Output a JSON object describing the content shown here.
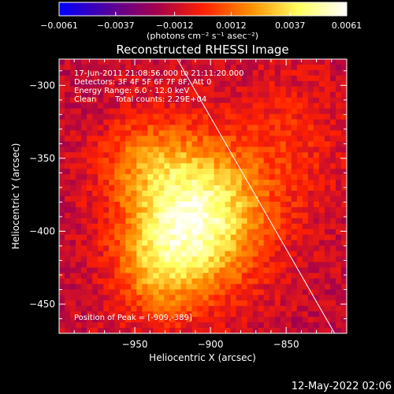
{
  "chart_data": {
    "type": "heatmap",
    "title": "Reconstructed RHESSI Image",
    "xlabel": "Heliocentric X (arcsec)",
    "ylabel": "Heliocentric Y (arcsec)",
    "xlim": [
      -1000,
      -810
    ],
    "ylim": [
      -470,
      -282
    ],
    "x_ticks": [
      -950,
      -900,
      -850
    ],
    "x_tick_labels": [
      "−950",
      "−900",
      "−850"
    ],
    "y_ticks": [
      -300,
      -350,
      -400,
      -450
    ],
    "y_tick_labels": [
      "−300",
      "−350",
      "−400",
      "−450"
    ],
    "colorbar": {
      "range": [
        -0.0061,
        0.0061
      ],
      "ticks": [
        -0.0061,
        -0.0037,
        -0.0012,
        0.0012,
        0.0037,
        0.0061
      ],
      "tick_labels": [
        "−0.0061",
        "−0.0037",
        "−0.0012",
        "0.0012",
        "0.0037",
        "0.0061"
      ],
      "unit_label": "(photons cm⁻² s⁻¹ asec⁻²)",
      "colors": [
        "#0000ff",
        "#5000a0",
        "#a00050",
        "#ff2000",
        "#ff9000",
        "#ffff60",
        "#ffffff"
      ]
    },
    "annotations": [
      "17-Jun-2011 21:08:56.000 to 21:11:20.000",
      "Detectors: 3F 4F 5F 6F 7F 8F, Att 0",
      "Energy Range: 6.0 - 12.0 keV",
      "Clean",
      "Total counts: 2.29E+04"
    ],
    "peak_label": "Position of Peak = [-909,-389]",
    "peak_position": [
      -909,
      -389
    ],
    "limb_line": [
      [
        -922,
        -282
      ],
      [
        -818,
        -470
      ]
    ],
    "sources": [
      {
        "x": -909,
        "y": -389,
        "sx": 30,
        "sy": 35,
        "amp": 0.0065
      },
      {
        "x": -935,
        "y": -425,
        "sx": 20,
        "sy": 25,
        "amp": 0.0025
      },
      {
        "x": -945,
        "y": -350,
        "sx": 20,
        "sy": 20,
        "amp": 0.002
      },
      {
        "x": -845,
        "y": -340,
        "sx": 25,
        "sy": 35,
        "amp": 0.0012
      }
    ]
  },
  "timestamp": "12-May-2022 02:06"
}
